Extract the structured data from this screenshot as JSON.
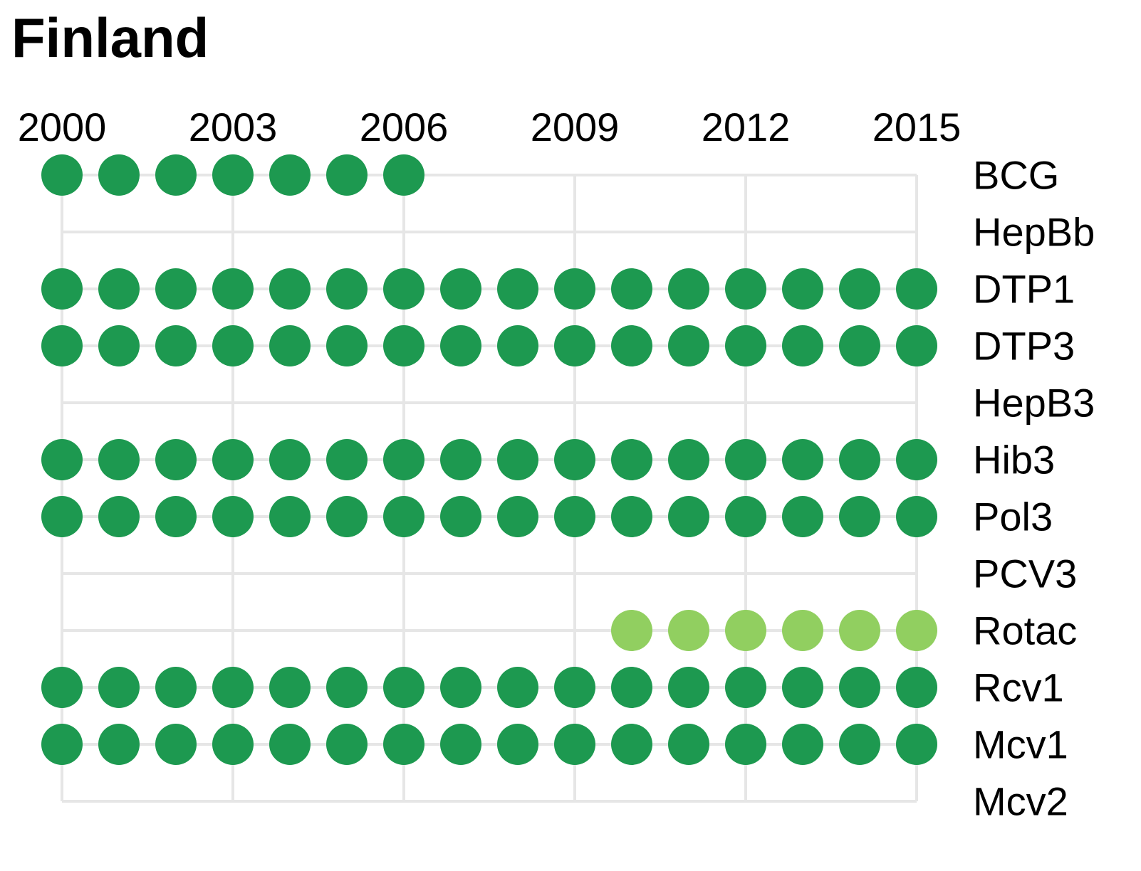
{
  "chart_data": {
    "type": "scatter",
    "title": "Finland",
    "x": [
      2000,
      2001,
      2002,
      2003,
      2004,
      2005,
      2006,
      2007,
      2008,
      2009,
      2010,
      2011,
      2012,
      2013,
      2014,
      2015
    ],
    "x_ticks": [
      "2000",
      "2003",
      "2006",
      "2009",
      "2012",
      "2015"
    ],
    "x_tick_values": [
      2000,
      2003,
      2006,
      2009,
      2012,
      2015
    ],
    "categories": [
      "BCG",
      "HepBb",
      "DTP1",
      "DTP3",
      "HepB3",
      "Hib3",
      "Pol3",
      "PCV3",
      "Rotac",
      "Rcv1",
      "Mcv1",
      "Mcv2"
    ],
    "series": [
      {
        "values": [
          2000,
          2001,
          2002,
          2003,
          2004,
          2005,
          2006
        ]
      },
      {
        "values": []
      },
      {
        "values": [
          2000,
          2001,
          2002,
          2003,
          2004,
          2005,
          2006,
          2007,
          2008,
          2009,
          2010,
          2011,
          2012,
          2013,
          2014,
          2015
        ]
      },
      {
        "values": [
          2000,
          2001,
          2002,
          2003,
          2004,
          2005,
          2006,
          2007,
          2008,
          2009,
          2010,
          2011,
          2012,
          2013,
          2014,
          2015
        ]
      },
      {
        "values": []
      },
      {
        "values": [
          2000,
          2001,
          2002,
          2003,
          2004,
          2005,
          2006,
          2007,
          2008,
          2009,
          2010,
          2011,
          2012,
          2013,
          2014,
          2015
        ]
      },
      {
        "values": [
          2000,
          2001,
          2002,
          2003,
          2004,
          2005,
          2006,
          2007,
          2008,
          2009,
          2010,
          2011,
          2012,
          2013,
          2014,
          2015
        ]
      },
      {
        "values": []
      },
      {
        "values": [
          2010,
          2011,
          2012,
          2013,
          2014,
          2015
        ],
        "variant": "light"
      },
      {
        "values": [
          2000,
          2001,
          2002,
          2003,
          2004,
          2005,
          2006,
          2007,
          2008,
          2009,
          2010,
          2011,
          2012,
          2013,
          2014,
          2015
        ]
      },
      {
        "values": [
          2000,
          2001,
          2002,
          2003,
          2004,
          2005,
          2006,
          2007,
          2008,
          2009,
          2010,
          2011,
          2012,
          2013,
          2014,
          2015
        ]
      },
      {
        "values": []
      }
    ],
    "colors": {
      "dark": "#1d9950",
      "light": "#91cf60",
      "grid": "#e6e6e6"
    },
    "xlim": [
      2000,
      2015
    ],
    "grid": true,
    "x_axis_position": "top",
    "y_axis_position": "right"
  }
}
